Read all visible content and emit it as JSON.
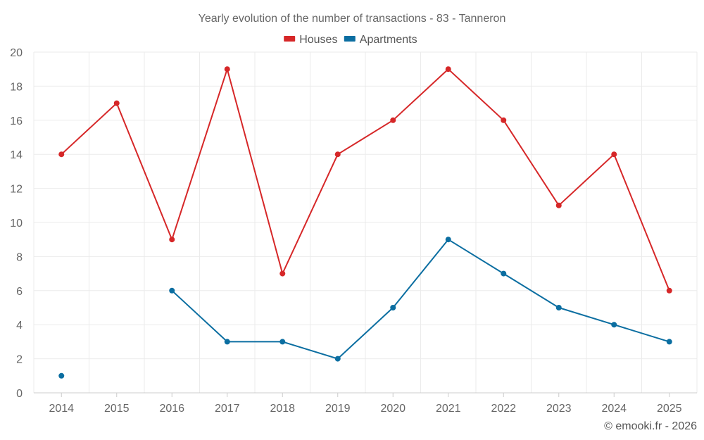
{
  "chart_data": {
    "type": "line",
    "title": "Yearly evolution of the number of transactions - 83 - Tanneron",
    "categories": [
      "2014",
      "2015",
      "2016",
      "2017",
      "2018",
      "2019",
      "2020",
      "2021",
      "2022",
      "2023",
      "2024",
      "2025"
    ],
    "series": [
      {
        "name": "Houses",
        "color": "#d62728",
        "values": [
          14,
          17,
          9,
          19,
          7,
          14,
          16,
          19,
          16,
          11,
          14,
          6
        ]
      },
      {
        "name": "Apartments",
        "color": "#0b6ea1",
        "values": [
          1,
          null,
          6,
          3,
          3,
          2,
          5,
          9,
          7,
          5,
          4,
          3
        ]
      }
    ],
    "yticks": [
      0,
      2,
      4,
      6,
      8,
      10,
      12,
      14,
      16,
      18,
      20
    ],
    "ylim": [
      0,
      20
    ],
    "xlabel": "",
    "ylabel": "",
    "grid": true,
    "legend": "top-center"
  },
  "credit": "© emooki.fr - 2026"
}
